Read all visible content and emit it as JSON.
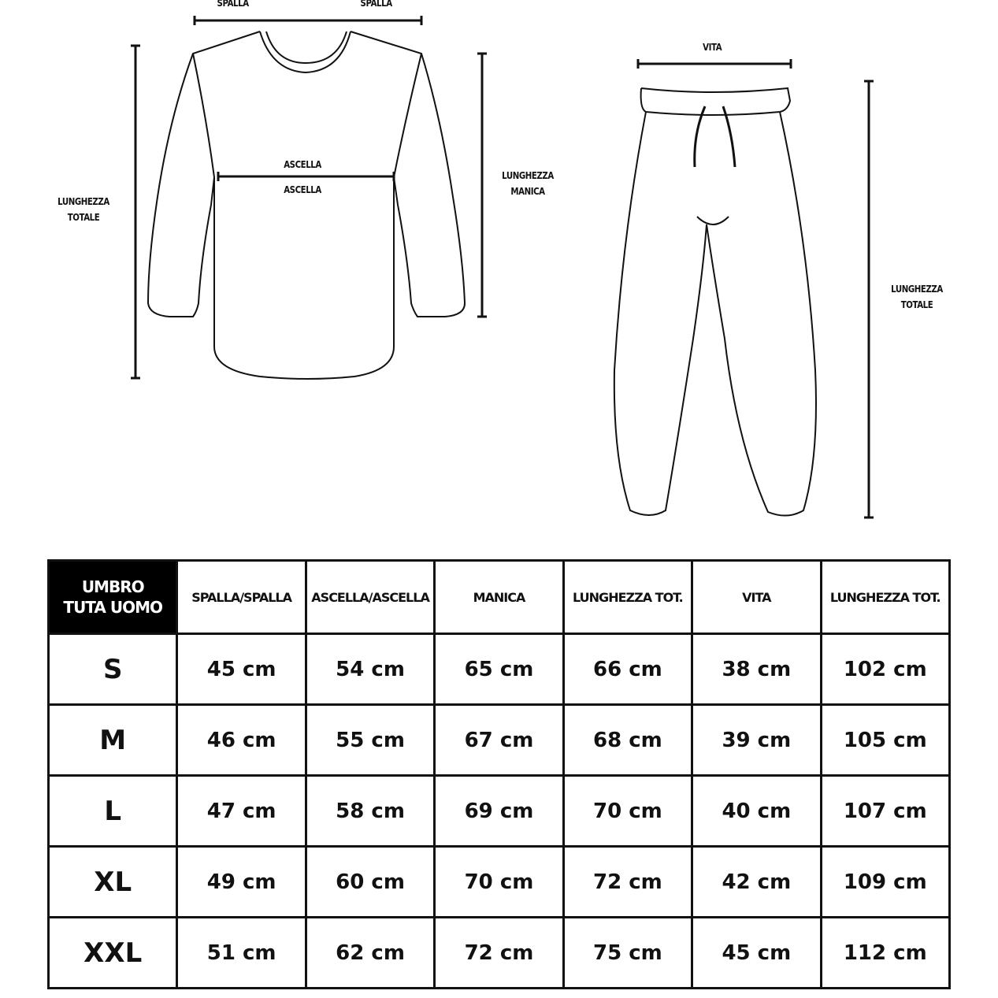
{
  "diagram": {
    "shirt": {
      "shoulder_left": "SPALLA",
      "shoulder_right": "SPALLA",
      "armpit_top": "ASCELLA",
      "armpit_bottom": "ASCELLA",
      "total_length": [
        "LUNGHEZZA",
        "TOTALE"
      ],
      "sleeve_length": [
        "LUNGHEZZA",
        "MANICA"
      ]
    },
    "pants": {
      "waist": "VITA",
      "total_length": [
        "LUNGHEZZA",
        "TOTALE"
      ]
    }
  },
  "table": {
    "brand": [
      "UMBRO",
      "TUTA UOMO"
    ],
    "headers": [
      "SPALLA/SPALLA",
      "ASCELLA/ASCELLA",
      "MANICA",
      "LUNGHEZZA TOT.",
      "VITA",
      "LUNGHEZZA TOT."
    ],
    "rows": [
      {
        "size": "S",
        "values": [
          "45 cm",
          "54 cm",
          "65 cm",
          "66 cm",
          "38 cm",
          "102 cm"
        ]
      },
      {
        "size": "M",
        "values": [
          "46 cm",
          "55 cm",
          "67 cm",
          "68 cm",
          "39 cm",
          "105 cm"
        ]
      },
      {
        "size": "L",
        "values": [
          "47 cm",
          "58 cm",
          "69 cm",
          "70 cm",
          "40 cm",
          "107 cm"
        ]
      },
      {
        "size": "XL",
        "values": [
          "49 cm",
          "60 cm",
          "70 cm",
          "72 cm",
          "42 cm",
          "109 cm"
        ]
      },
      {
        "size": "XXL",
        "values": [
          "51 cm",
          "62 cm",
          "72 cm",
          "75 cm",
          "45 cm",
          "112 cm"
        ]
      }
    ]
  }
}
